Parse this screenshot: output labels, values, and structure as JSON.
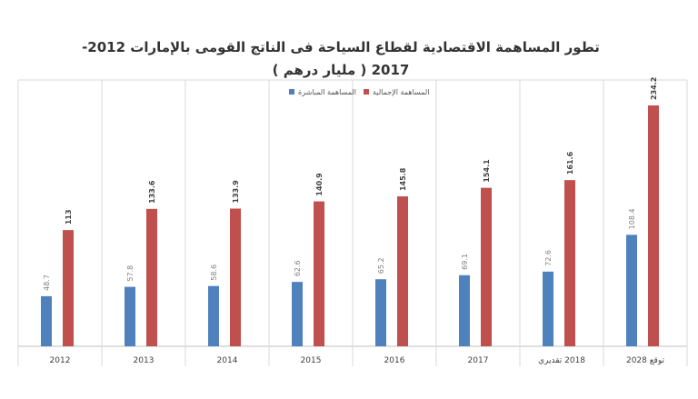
{
  "chart_data": {
    "type": "bar",
    "title": "تطور المساهمة الاقتصادية لقطاع السياحة فى الناتج القومى بالإمارات 2012-2017 ( مليار درهم )",
    "categories": [
      "2012",
      "2013",
      "2014",
      "2015",
      "2016",
      "2017",
      "2018 تقديري",
      "توقع 2028"
    ],
    "series": [
      {
        "name": "المساهمة المباشرة",
        "color": "#4f81bd",
        "values": [
          48.7,
          57.8,
          58.6,
          62.6,
          65.2,
          69.1,
          72.6,
          108.4
        ]
      },
      {
        "name": "المساهمة الإجمالية",
        "color": "#c0504d",
        "values": [
          113,
          133.6,
          133.9,
          140.9,
          145.8,
          154.1,
          161.6,
          234.2
        ]
      }
    ]
  }
}
